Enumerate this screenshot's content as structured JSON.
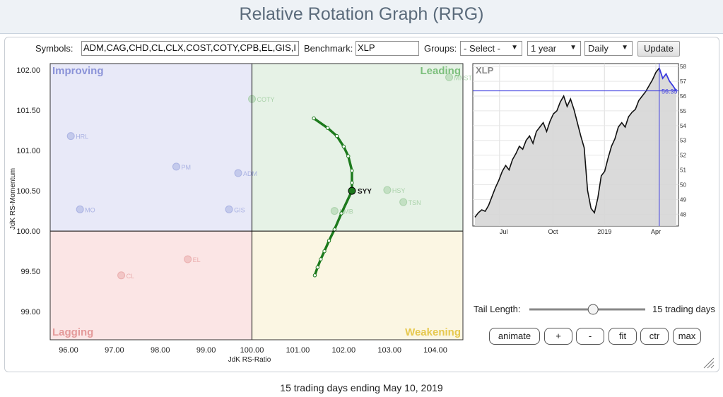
{
  "page": {
    "title": "Relative Rotation Graph (RRG)",
    "footer": "15 trading days ending May 10, 2019"
  },
  "controls": {
    "symbols_label": "Symbols:",
    "symbols_value": "ADM,CAG,CHD,CL,CLX,COST,COTY,CPB,EL,GIS,I",
    "benchmark_label": "Benchmark:",
    "benchmark_value": "XLP",
    "groups_label": "Groups:",
    "groups_value": "- Select -",
    "period_value": "1 year",
    "frequency_value": "Daily",
    "update_label": "Update",
    "tail_length_label": "Tail Length:",
    "tail_length_value": "15 trading days",
    "tail_length_fraction": 0.55,
    "buttons": [
      "animate",
      "+",
      "-",
      "fit",
      "ctr",
      "max"
    ]
  },
  "chart_data": [
    {
      "type": "scatter",
      "title": "",
      "xlabel": "JdK RS-Ratio",
      "ylabel": "JdK RS-Momentum",
      "xlim": [
        95.6,
        104.6
      ],
      "ylim": [
        98.65,
        102.08
      ],
      "x_ticks": [
        "96.00",
        "97.00",
        "98.00",
        "99.00",
        "100.00",
        "101.00",
        "102.00",
        "103.00",
        "104.00"
      ],
      "y_ticks": [
        "99.00",
        "99.50",
        "100.00",
        "100.50",
        "101.00",
        "101.50",
        "102.00"
      ],
      "quadrants": {
        "top_left": {
          "label": "Improving",
          "color": "#8b93d8",
          "fill": "#e8e9f8"
        },
        "top_right": {
          "label": "Leading",
          "color": "#7cbf7c",
          "fill": "#e6f2e6"
        },
        "bottom_left": {
          "label": "Lagging",
          "color": "#e49a9a",
          "fill": "#fbe5e5"
        },
        "bottom_right": {
          "label": "Weakening",
          "color": "#e6c84e",
          "fill": "#fbf6e3"
        }
      },
      "highlight_series": {
        "name": "SYY",
        "color": "#1c7a1c",
        "points": [
          [
            101.35,
            101.4
          ],
          [
            101.65,
            101.28
          ],
          [
            101.85,
            101.18
          ],
          [
            102.0,
            101.05
          ],
          [
            102.1,
            100.93
          ],
          [
            102.18,
            100.75
          ],
          [
            102.18,
            100.6
          ],
          [
            102.18,
            100.5
          ],
          [
            101.95,
            100.22
          ],
          [
            101.8,
            100.02
          ],
          [
            101.68,
            99.88
          ],
          [
            101.58,
            99.75
          ],
          [
            101.5,
            99.65
          ],
          [
            101.43,
            99.55
          ],
          [
            101.37,
            99.45
          ]
        ]
      },
      "faded_labels": [
        {
          "name": "HRL",
          "x": 96.05,
          "y": 101.18,
          "color": "#9aa4dd"
        },
        {
          "name": "PM",
          "x": 98.35,
          "y": 100.8,
          "color": "#9aa4dd"
        },
        {
          "name": "MO",
          "x": 96.25,
          "y": 100.27,
          "color": "#9aa4dd"
        },
        {
          "name": "ADM",
          "x": 99.7,
          "y": 100.72,
          "color": "#9aa4dd"
        },
        {
          "name": "GIS",
          "x": 99.5,
          "y": 100.27,
          "color": "#9aa4dd"
        },
        {
          "name": "COTY",
          "x": 100.0,
          "y": 101.64,
          "color": "#9ac99a"
        },
        {
          "name": "MNST",
          "x": 104.3,
          "y": 101.91,
          "color": "#9ac99a"
        },
        {
          "name": "HSY",
          "x": 102.95,
          "y": 100.51,
          "color": "#9ac99a"
        },
        {
          "name": "TSN",
          "x": 103.3,
          "y": 100.36,
          "color": "#9ac99a"
        },
        {
          "name": "KMB",
          "x": 101.8,
          "y": 100.25,
          "color": "#9ac99a"
        },
        {
          "name": "EL",
          "x": 98.6,
          "y": 99.65,
          "color": "#e6a0a0"
        },
        {
          "name": "CL",
          "x": 97.15,
          "y": 99.45,
          "color": "#e6a0a0"
        }
      ]
    },
    {
      "type": "area",
      "title": "XLP",
      "xlabel": "",
      "ylabel": "",
      "x_ticks": [
        "Jul",
        "Oct",
        "2019",
        "Apr"
      ],
      "y_ticks": [
        "48",
        "49",
        "50",
        "51",
        "52",
        "53",
        "54",
        "55",
        "56",
        "57",
        "58"
      ],
      "ylim": [
        47.2,
        58.2
      ],
      "last_value": "56.35",
      "line_color": "#111111",
      "recent_color": "#3a3adf",
      "values": [
        47.8,
        48.1,
        48.3,
        48.2,
        48.6,
        49.2,
        49.8,
        50.3,
        50.9,
        51.3,
        51.0,
        51.7,
        52.1,
        52.6,
        52.4,
        53.0,
        53.3,
        52.8,
        53.6,
        53.9,
        54.2,
        53.6,
        54.3,
        54.8,
        55.0,
        55.6,
        56.0,
        55.3,
        55.8,
        55.1,
        54.2,
        53.3,
        52.5,
        49.6,
        48.4,
        48.1,
        49.1,
        50.6,
        50.9,
        51.8,
        52.6,
        53.1,
        53.9,
        54.2,
        53.9,
        54.6,
        54.9,
        55.1,
        55.7,
        56.0,
        56.3,
        56.7,
        57.1,
        57.6,
        57.9,
        57.2,
        57.5,
        57.0,
        56.7,
        56.35
      ]
    }
  ]
}
